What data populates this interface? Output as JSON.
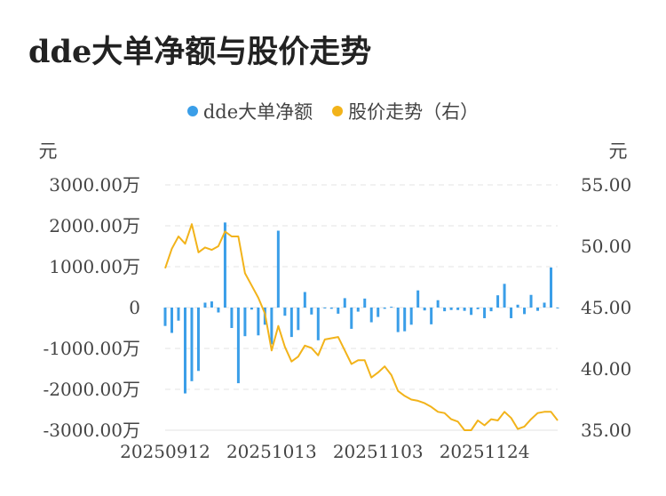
{
  "title": "dde大单净额与股价走势",
  "colors": {
    "bar": "#3a9ee8",
    "line": "#f2b31a",
    "grid": "#e3e3e3",
    "axis_text": "#444444"
  },
  "chart_data": {
    "type": "bar+line",
    "legend": [
      {
        "label": "dde大单净额",
        "color": "#3a9ee8"
      },
      {
        "label": "股价走势（右）",
        "color": "#f2b31a"
      }
    ],
    "legend_position": "top-center",
    "y_left": {
      "label": "元",
      "ticks": [
        "3000.00万",
        "2000.00万",
        "1000.00万",
        "0",
        "-1000.00万",
        "-2000.00万",
        "-3000.00万"
      ],
      "min": -3000,
      "max": 3000,
      "unit": "万"
    },
    "y_right": {
      "label": "元",
      "ticks": [
        "55.00",
        "50.00",
        "45.00",
        "40.00",
        "35.00"
      ],
      "min": 35,
      "max": 55
    },
    "x_ticks": [
      {
        "label": "20250912",
        "index": 0
      },
      {
        "label": "20251013",
        "index": 16
      },
      {
        "label": "20251103",
        "index": 32
      },
      {
        "label": "20251124",
        "index": 48
      }
    ],
    "grid": true,
    "series": [
      {
        "name": "dde大单净额",
        "type": "bar",
        "values": [
          -450,
          -620,
          -320,
          -2100,
          -1800,
          -1550,
          120,
          150,
          -120,
          2080,
          -500,
          -1850,
          -700,
          -50,
          -680,
          -420,
          -900,
          1880,
          -200,
          -720,
          -550,
          380,
          -170,
          -800,
          -20,
          -30,
          -150,
          230,
          -520,
          -100,
          220,
          -360,
          -230,
          -30,
          20,
          -600,
          -580,
          -420,
          420,
          -70,
          -410,
          180,
          -90,
          -60,
          -60,
          -80,
          -180,
          -40,
          -260,
          -90,
          300,
          580,
          -260,
          70,
          -160,
          310,
          -80,
          120,
          980,
          -20
        ]
      },
      {
        "name": "股价走势（右）",
        "type": "line",
        "values": [
          48.2,
          49.8,
          50.8,
          50.2,
          51.8,
          49.5,
          49.9,
          49.7,
          50.0,
          51.2,
          50.8,
          50.8,
          47.8,
          46.8,
          45.8,
          44.5,
          41.5,
          43.5,
          41.8,
          40.6,
          41.0,
          41.9,
          41.7,
          41.1,
          42.4,
          42.5,
          42.6,
          41.5,
          40.4,
          40.7,
          40.7,
          39.3,
          39.7,
          40.2,
          39.5,
          38.2,
          37.8,
          37.5,
          37.4,
          37.2,
          36.9,
          36.5,
          36.4,
          35.9,
          35.7,
          35.0,
          35.0,
          35.8,
          35.4,
          35.9,
          35.8,
          36.5,
          36.0,
          35.1,
          35.3,
          35.9,
          36.4,
          36.5,
          36.5,
          35.8
        ]
      }
    ]
  }
}
